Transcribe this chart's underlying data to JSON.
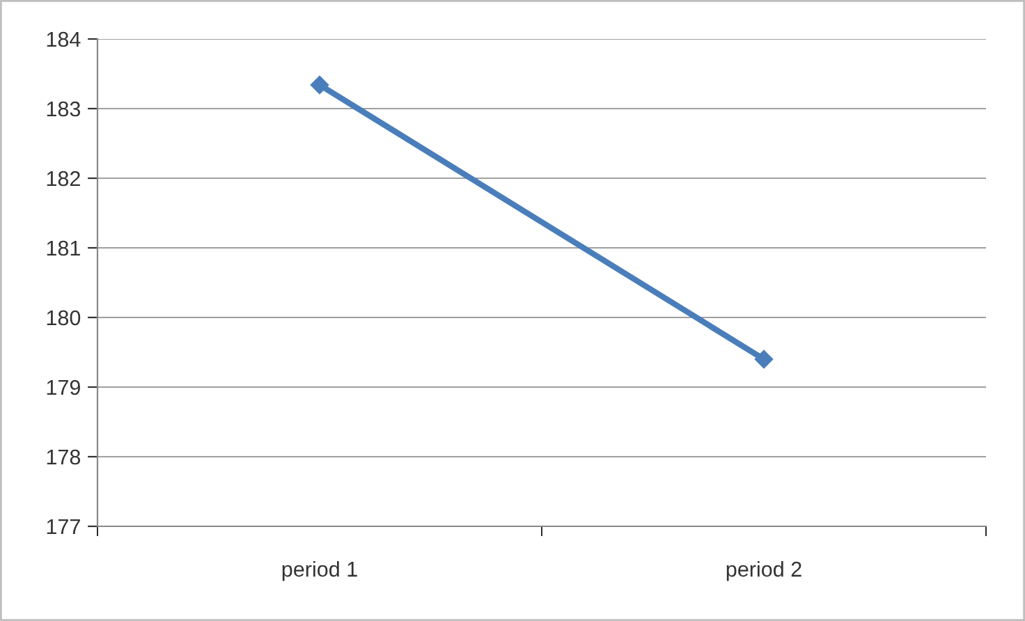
{
  "chart_data": {
    "type": "line",
    "categories": [
      "period 1",
      "period 2"
    ],
    "series": [
      {
        "color": "#4a7ebb",
        "values": [
          183.34,
          179.4
        ]
      }
    ],
    "ylim": [
      177,
      184
    ],
    "yticks": [
      177,
      178,
      179,
      180,
      181,
      182,
      183,
      184
    ],
    "grid": "y",
    "marker": "diamond",
    "line_style": "solid",
    "legend": false
  }
}
